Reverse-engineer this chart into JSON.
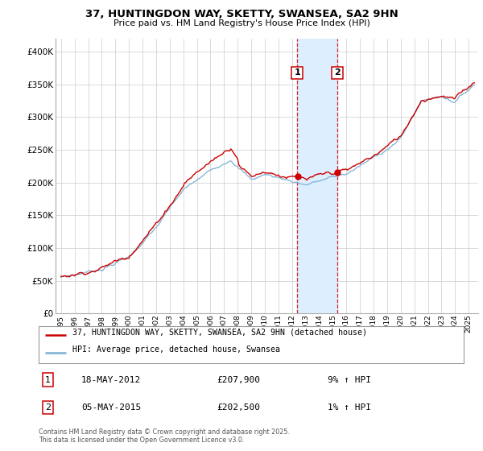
{
  "title": "37, HUNTINGDON WAY, SKETTY, SWANSEA, SA2 9HN",
  "subtitle": "Price paid vs. HM Land Registry's House Price Index (HPI)",
  "legend_line1": "37, HUNTINGDON WAY, SKETTY, SWANSEA, SA2 9HN (detached house)",
  "legend_line2": "HPI: Average price, detached house, Swansea",
  "transaction1_label": "1",
  "transaction1_date": "18-MAY-2012",
  "transaction1_price": "£207,900",
  "transaction1_hpi": "9% ↑ HPI",
  "transaction2_label": "2",
  "transaction2_date": "05-MAY-2015",
  "transaction2_price": "£202,500",
  "transaction2_hpi": "1% ↑ HPI",
  "footer": "Contains HM Land Registry data © Crown copyright and database right 2025.\nThis data is licensed under the Open Government Licence v3.0.",
  "red_color": "#cc0000",
  "blue_color": "#7bafd4",
  "shading_color": "#ddeeff",
  "marker1_year": 2012.38,
  "marker2_year": 2015.34,
  "ylim_min": 0,
  "ylim_max": 420000,
  "bg_color": "#f8f8f8"
}
